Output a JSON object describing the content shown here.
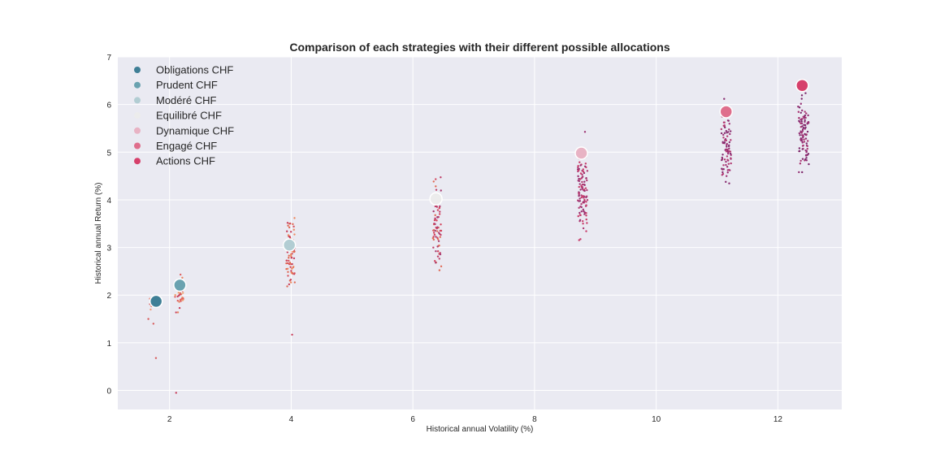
{
  "chart_data": {
    "type": "scatter",
    "title": "Comparison of each strategies with their different possible allocations",
    "xlabel": "Historical annual Volatility (%)",
    "ylabel": "Historical annual Return (%)",
    "xlim": [
      1.15,
      13.05
    ],
    "ylim": [
      -0.4,
      7.0
    ],
    "xticks": [
      2,
      4,
      6,
      8,
      10,
      12
    ],
    "yticks": [
      0,
      1,
      2,
      3,
      4,
      5,
      6,
      7
    ],
    "grid": true,
    "legend_position": "top-left",
    "series": [
      {
        "name": "Obligations CHF",
        "color": "#3f7f96",
        "x": 1.78,
        "y": 1.87
      },
      {
        "name": "Prudent CHF",
        "color": "#6aa2b0",
        "x": 2.17,
        "y": 2.21
      },
      {
        "name": "Modéré CHF",
        "color": "#b2cdd3",
        "x": 3.97,
        "y": 3.05
      },
      {
        "name": "Equilibré CHF",
        "color": "#ececec",
        "x": 6.38,
        "y": 4.02
      },
      {
        "name": "Dynamique CHF",
        "color": "#e8b3c4",
        "x": 8.77,
        "y": 4.98
      },
      {
        "name": "Engagé CHF",
        "color": "#df6e8c",
        "x": 11.15,
        "y": 5.85
      },
      {
        "name": "Actions CHF",
        "color": "#d6406b",
        "x": 12.4,
        "y": 6.4
      }
    ],
    "allocation_clouds": [
      {
        "x_center": 1.72,
        "x_spread": 0.07,
        "y_min": 1.55,
        "y_max": 2.15,
        "count": 14,
        "extra_y": [
          0.68,
          1.4,
          1.5
        ],
        "colors": [
          "#f0a080",
          "#e8745f",
          "#d85a5a"
        ]
      },
      {
        "x_center": 2.16,
        "x_spread": 0.07,
        "y_min": 1.42,
        "y_max": 2.62,
        "count": 40,
        "extra_y": [
          -0.05
        ],
        "colors": [
          "#f0a070",
          "#e8845f",
          "#e06060",
          "#c8405c"
        ]
      },
      {
        "x_center": 3.99,
        "x_spread": 0.07,
        "y_min": 1.72,
        "y_max": 4.02,
        "count": 70,
        "extra_y": [
          1.17
        ],
        "colors": [
          "#ee8a60",
          "#e06a55",
          "#d8505a",
          "#c8405c"
        ]
      },
      {
        "x_center": 6.4,
        "x_spread": 0.07,
        "y_min": 1.93,
        "y_max": 5.07,
        "count": 80,
        "extra_y": [],
        "colors": [
          "#e06a55",
          "#d4465e",
          "#c0406a",
          "#a83c70"
        ]
      },
      {
        "x_center": 8.79,
        "x_spread": 0.08,
        "y_min": 2.78,
        "y_max": 5.65,
        "count": 110,
        "extra_y": [],
        "colors": [
          "#c83c6a",
          "#b03a72",
          "#9a2f6e"
        ]
      },
      {
        "x_center": 11.15,
        "x_spread": 0.08,
        "y_min": 3.78,
        "y_max": 6.5,
        "count": 90,
        "extra_y": [],
        "colors": [
          "#b33a72",
          "#9e3174",
          "#862a6e"
        ]
      },
      {
        "x_center": 12.42,
        "x_spread": 0.09,
        "y_min": 4.05,
        "y_max": 6.68,
        "count": 100,
        "extra_y": [],
        "colors": [
          "#a83370",
          "#932d72",
          "#7c266a"
        ]
      }
    ]
  }
}
